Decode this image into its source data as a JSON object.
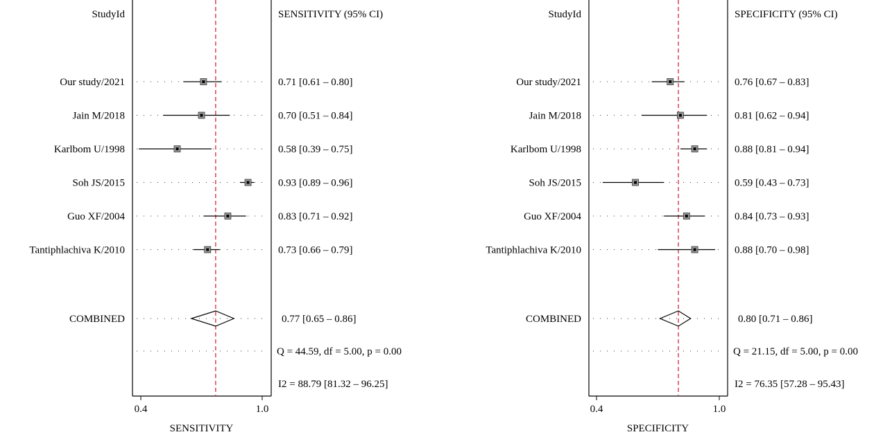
{
  "colors": {
    "reference_line": "#d6304f",
    "axis": "#000000",
    "marker_fill": "#9a9a9a"
  },
  "chart_data": [
    {
      "type": "forest",
      "study_header": "StudyId",
      "ci_header": "SENSITIVITY (95% CI)",
      "xlabel": "SENSITIVITY",
      "xlim": [
        0.4,
        1.0
      ],
      "ticks": [
        "0.4",
        "1.0"
      ],
      "reference_value": 0.77,
      "studies": [
        {
          "label": "Our study/2021",
          "estimate": 0.71,
          "lower": 0.61,
          "upper": 0.8,
          "text": "0.71 [0.61 – 0.80]"
        },
        {
          "label": "Jain M/2018",
          "estimate": 0.7,
          "lower": 0.51,
          "upper": 0.84,
          "text": "0.70 [0.51 – 0.84]"
        },
        {
          "label": "Karlbom U/1998",
          "estimate": 0.58,
          "lower": 0.39,
          "upper": 0.75,
          "text": "0.58 [0.39 – 0.75]"
        },
        {
          "label": "Soh JS/2015",
          "estimate": 0.93,
          "lower": 0.89,
          "upper": 0.96,
          "text": "0.93 [0.89 – 0.96]"
        },
        {
          "label": "Guo XF/2004",
          "estimate": 0.83,
          "lower": 0.71,
          "upper": 0.92,
          "text": "0.83 [0.71 – 0.92]"
        },
        {
          "label": "Tantiphlachiva K/2010",
          "estimate": 0.73,
          "lower": 0.66,
          "upper": 0.79,
          "text": "0.73 [0.66 – 0.79]"
        }
      ],
      "combined": {
        "label": "COMBINED",
        "estimate": 0.77,
        "lower": 0.65,
        "upper": 0.86,
        "text": "0.77 [0.65 – 0.86]"
      },
      "heterogeneity_q": "Q = 44.59, df = 5.00, p = 0.00",
      "heterogeneity_i2": "I2 = 88.79 [81.32 – 96.25]"
    },
    {
      "type": "forest",
      "study_header": "StudyId",
      "ci_header": "SPECIFICITY (95% CI)",
      "xlabel": "SPECIFICITY",
      "xlim": [
        0.4,
        1.0
      ],
      "ticks": [
        "0.4",
        "1.0"
      ],
      "reference_value": 0.8,
      "studies": [
        {
          "label": "Our study/2021",
          "estimate": 0.76,
          "lower": 0.67,
          "upper": 0.83,
          "text": "0.76 [0.67 – 0.83]"
        },
        {
          "label": "Jain M/2018",
          "estimate": 0.81,
          "lower": 0.62,
          "upper": 0.94,
          "text": "0.81 [0.62 – 0.94]"
        },
        {
          "label": "Karlbom U/1998",
          "estimate": 0.88,
          "lower": 0.81,
          "upper": 0.94,
          "text": "0.88 [0.81 – 0.94]"
        },
        {
          "label": "Soh JS/2015",
          "estimate": 0.59,
          "lower": 0.43,
          "upper": 0.73,
          "text": "0.59 [0.43 – 0.73]"
        },
        {
          "label": "Guo XF/2004",
          "estimate": 0.84,
          "lower": 0.73,
          "upper": 0.93,
          "text": "0.84 [0.73 – 0.93]"
        },
        {
          "label": "Tantiphlachiva K/2010",
          "estimate": 0.88,
          "lower": 0.7,
          "upper": 0.98,
          "text": "0.88 [0.70 – 0.98]"
        }
      ],
      "combined": {
        "label": "COMBINED",
        "estimate": 0.8,
        "lower": 0.71,
        "upper": 0.86,
        "text": "0.80 [0.71 – 0.86]"
      },
      "heterogeneity_q": "Q = 21.15, df = 5.00, p = 0.00",
      "heterogeneity_i2": "I2 = 76.35 [57.28 – 95.43]"
    }
  ]
}
